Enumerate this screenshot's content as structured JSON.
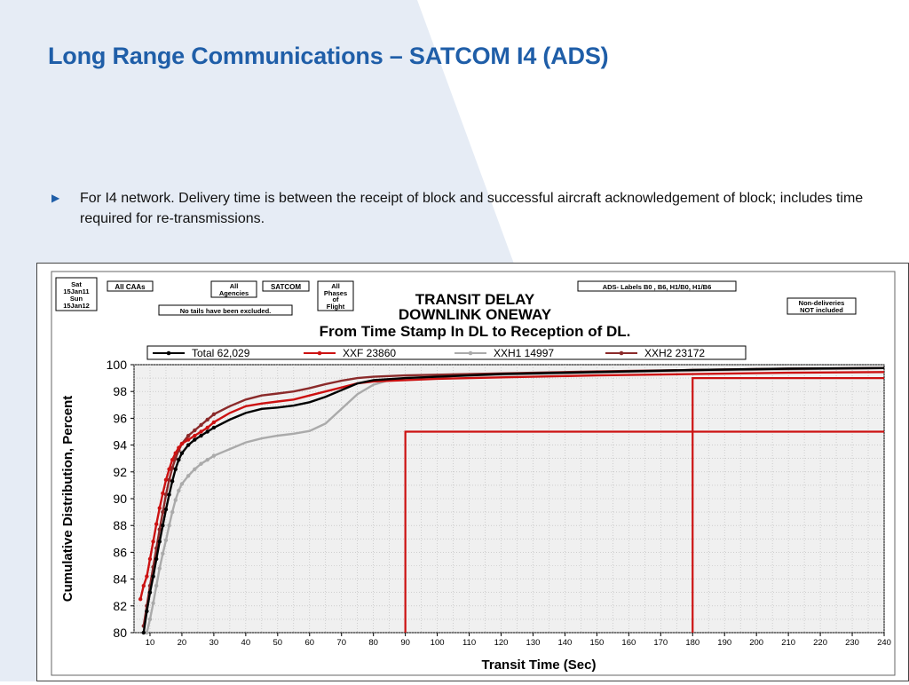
{
  "slide": {
    "title": "Long Range Communications – SATCOM I4 (ADS)",
    "bullet_icon": "triangle-right-icon",
    "bullet": "For I4 network.  Delivery time is between the receipt of block and successful aircraft  acknowledgement of block; includes time required for re-transmissions."
  },
  "colors": {
    "title": "#1f5ea8",
    "background_shape": "#e6ecf5"
  },
  "chart_labels": {
    "date_box": [
      "Sat",
      "15Jan11",
      "Sun",
      "15Jan12"
    ],
    "caas_box": "All CAAs",
    "agencies_box": [
      "All",
      "Agencies"
    ],
    "satcom_box": "SATCOM",
    "phases_box": [
      "All",
      "Phases",
      "of",
      "Flight"
    ],
    "tails_box": "No tails have been excluded.",
    "ads_box": "ADS- Labels B0 , B6, H1/B0, H1/B6",
    "nondeliv_box": [
      "Non-deliveries",
      "NOT included"
    ]
  },
  "chart_data": {
    "type": "line",
    "title": [
      "TRANSIT DELAY",
      "DOWNLINK ONEWAY",
      "From Time Stamp In DL to Reception of DL."
    ],
    "xlabel": "Transit Time (Sec)",
    "ylabel": "Cumulative Distribution, Percent",
    "xlim": [
      5,
      240
    ],
    "ylim": [
      80,
      100
    ],
    "xticks": [
      10,
      20,
      30,
      40,
      50,
      60,
      70,
      80,
      90,
      100,
      110,
      120,
      130,
      140,
      150,
      160,
      170,
      180,
      190,
      200,
      210,
      220,
      230,
      240
    ],
    "yticks": [
      80,
      82,
      84,
      86,
      88,
      90,
      92,
      94,
      96,
      98,
      100
    ],
    "grid": true,
    "legend_position": "top",
    "series": [
      {
        "name": "Total",
        "count": "62,029",
        "color": "#000000",
        "x": [
          8,
          9,
          10,
          11,
          12,
          13,
          14,
          15,
          16,
          17,
          18,
          19,
          20,
          22,
          24,
          26,
          28,
          30,
          35,
          40,
          45,
          50,
          55,
          60,
          65,
          70,
          75,
          80,
          90,
          100,
          120,
          150,
          180,
          210,
          240
        ],
        "y": [
          80,
          81.6,
          83,
          84.2,
          85.5,
          86.8,
          88,
          89.2,
          90.3,
          91.3,
          92.2,
          92.9,
          93.4,
          94,
          94.4,
          94.7,
          95,
          95.3,
          95.9,
          96.4,
          96.7,
          96.8,
          96.95,
          97.2,
          97.6,
          98.1,
          98.6,
          98.85,
          99,
          99.1,
          99.3,
          99.45,
          99.6,
          99.7,
          99.75
        ]
      },
      {
        "name": "XXF",
        "count": "23860",
        "color": "#cc1111",
        "x": [
          7,
          8,
          9,
          10,
          11,
          12,
          13,
          14,
          15,
          16,
          17,
          18,
          19,
          20,
          22,
          24,
          26,
          28,
          30,
          35,
          40,
          45,
          50,
          55,
          60,
          65,
          70,
          75,
          80,
          90,
          100,
          120,
          150,
          180,
          210,
          240
        ],
        "y": [
          82.5,
          83.5,
          84.2,
          85.5,
          86.8,
          88.1,
          89.3,
          90.4,
          91.4,
          92.2,
          92.9,
          93.4,
          93.8,
          94.1,
          94.4,
          94.7,
          95,
          95.3,
          95.7,
          96.4,
          96.9,
          97.1,
          97.25,
          97.4,
          97.7,
          98,
          98.3,
          98.6,
          98.75,
          98.85,
          98.95,
          99.05,
          99.2,
          99.3,
          99.4,
          99.45
        ]
      },
      {
        "name": "XXH1",
        "count": "14997",
        "color": "#aaaaaa",
        "x": [
          9,
          10,
          11,
          12,
          13,
          14,
          15,
          16,
          17,
          18,
          19,
          20,
          22,
          24,
          26,
          28,
          30,
          35,
          40,
          45,
          50,
          55,
          60,
          65,
          70,
          75,
          80,
          85,
          90,
          100,
          120,
          150,
          180,
          210,
          240
        ],
        "y": [
          80,
          81,
          82.2,
          83.5,
          84.8,
          85.9,
          86.9,
          88,
          89,
          89.9,
          90.6,
          91.1,
          91.7,
          92.2,
          92.6,
          92.9,
          93.2,
          93.7,
          94.2,
          94.5,
          94.7,
          94.85,
          95.05,
          95.6,
          96.7,
          97.8,
          98.5,
          98.85,
          99,
          99.1,
          99.25,
          99.4,
          99.55,
          99.65,
          99.75
        ]
      },
      {
        "name": "XXH2",
        "count": "23172",
        "color": "#8b2a2a",
        "x": [
          8,
          9,
          10,
          11,
          12,
          13,
          14,
          15,
          16,
          17,
          18,
          19,
          20,
          22,
          24,
          26,
          28,
          30,
          35,
          40,
          45,
          50,
          55,
          60,
          65,
          70,
          75,
          80,
          90,
          100,
          120,
          150,
          180,
          210,
          240
        ],
        "y": [
          80.5,
          82,
          83.5,
          84.9,
          86.3,
          87.7,
          89,
          90.3,
          91.4,
          92.3,
          93,
          93.6,
          94.1,
          94.7,
          95.1,
          95.5,
          95.9,
          96.3,
          96.9,
          97.4,
          97.7,
          97.85,
          98,
          98.25,
          98.55,
          98.8,
          99,
          99.1,
          99.2,
          99.25,
          99.35,
          99.5,
          99.6,
          99.7,
          99.75
        ]
      }
    ],
    "reference_lines": [
      {
        "x": 90,
        "y": 95,
        "color": "#cc1111"
      },
      {
        "x": 180,
        "y": 99,
        "color": "#cc1111"
      }
    ]
  }
}
